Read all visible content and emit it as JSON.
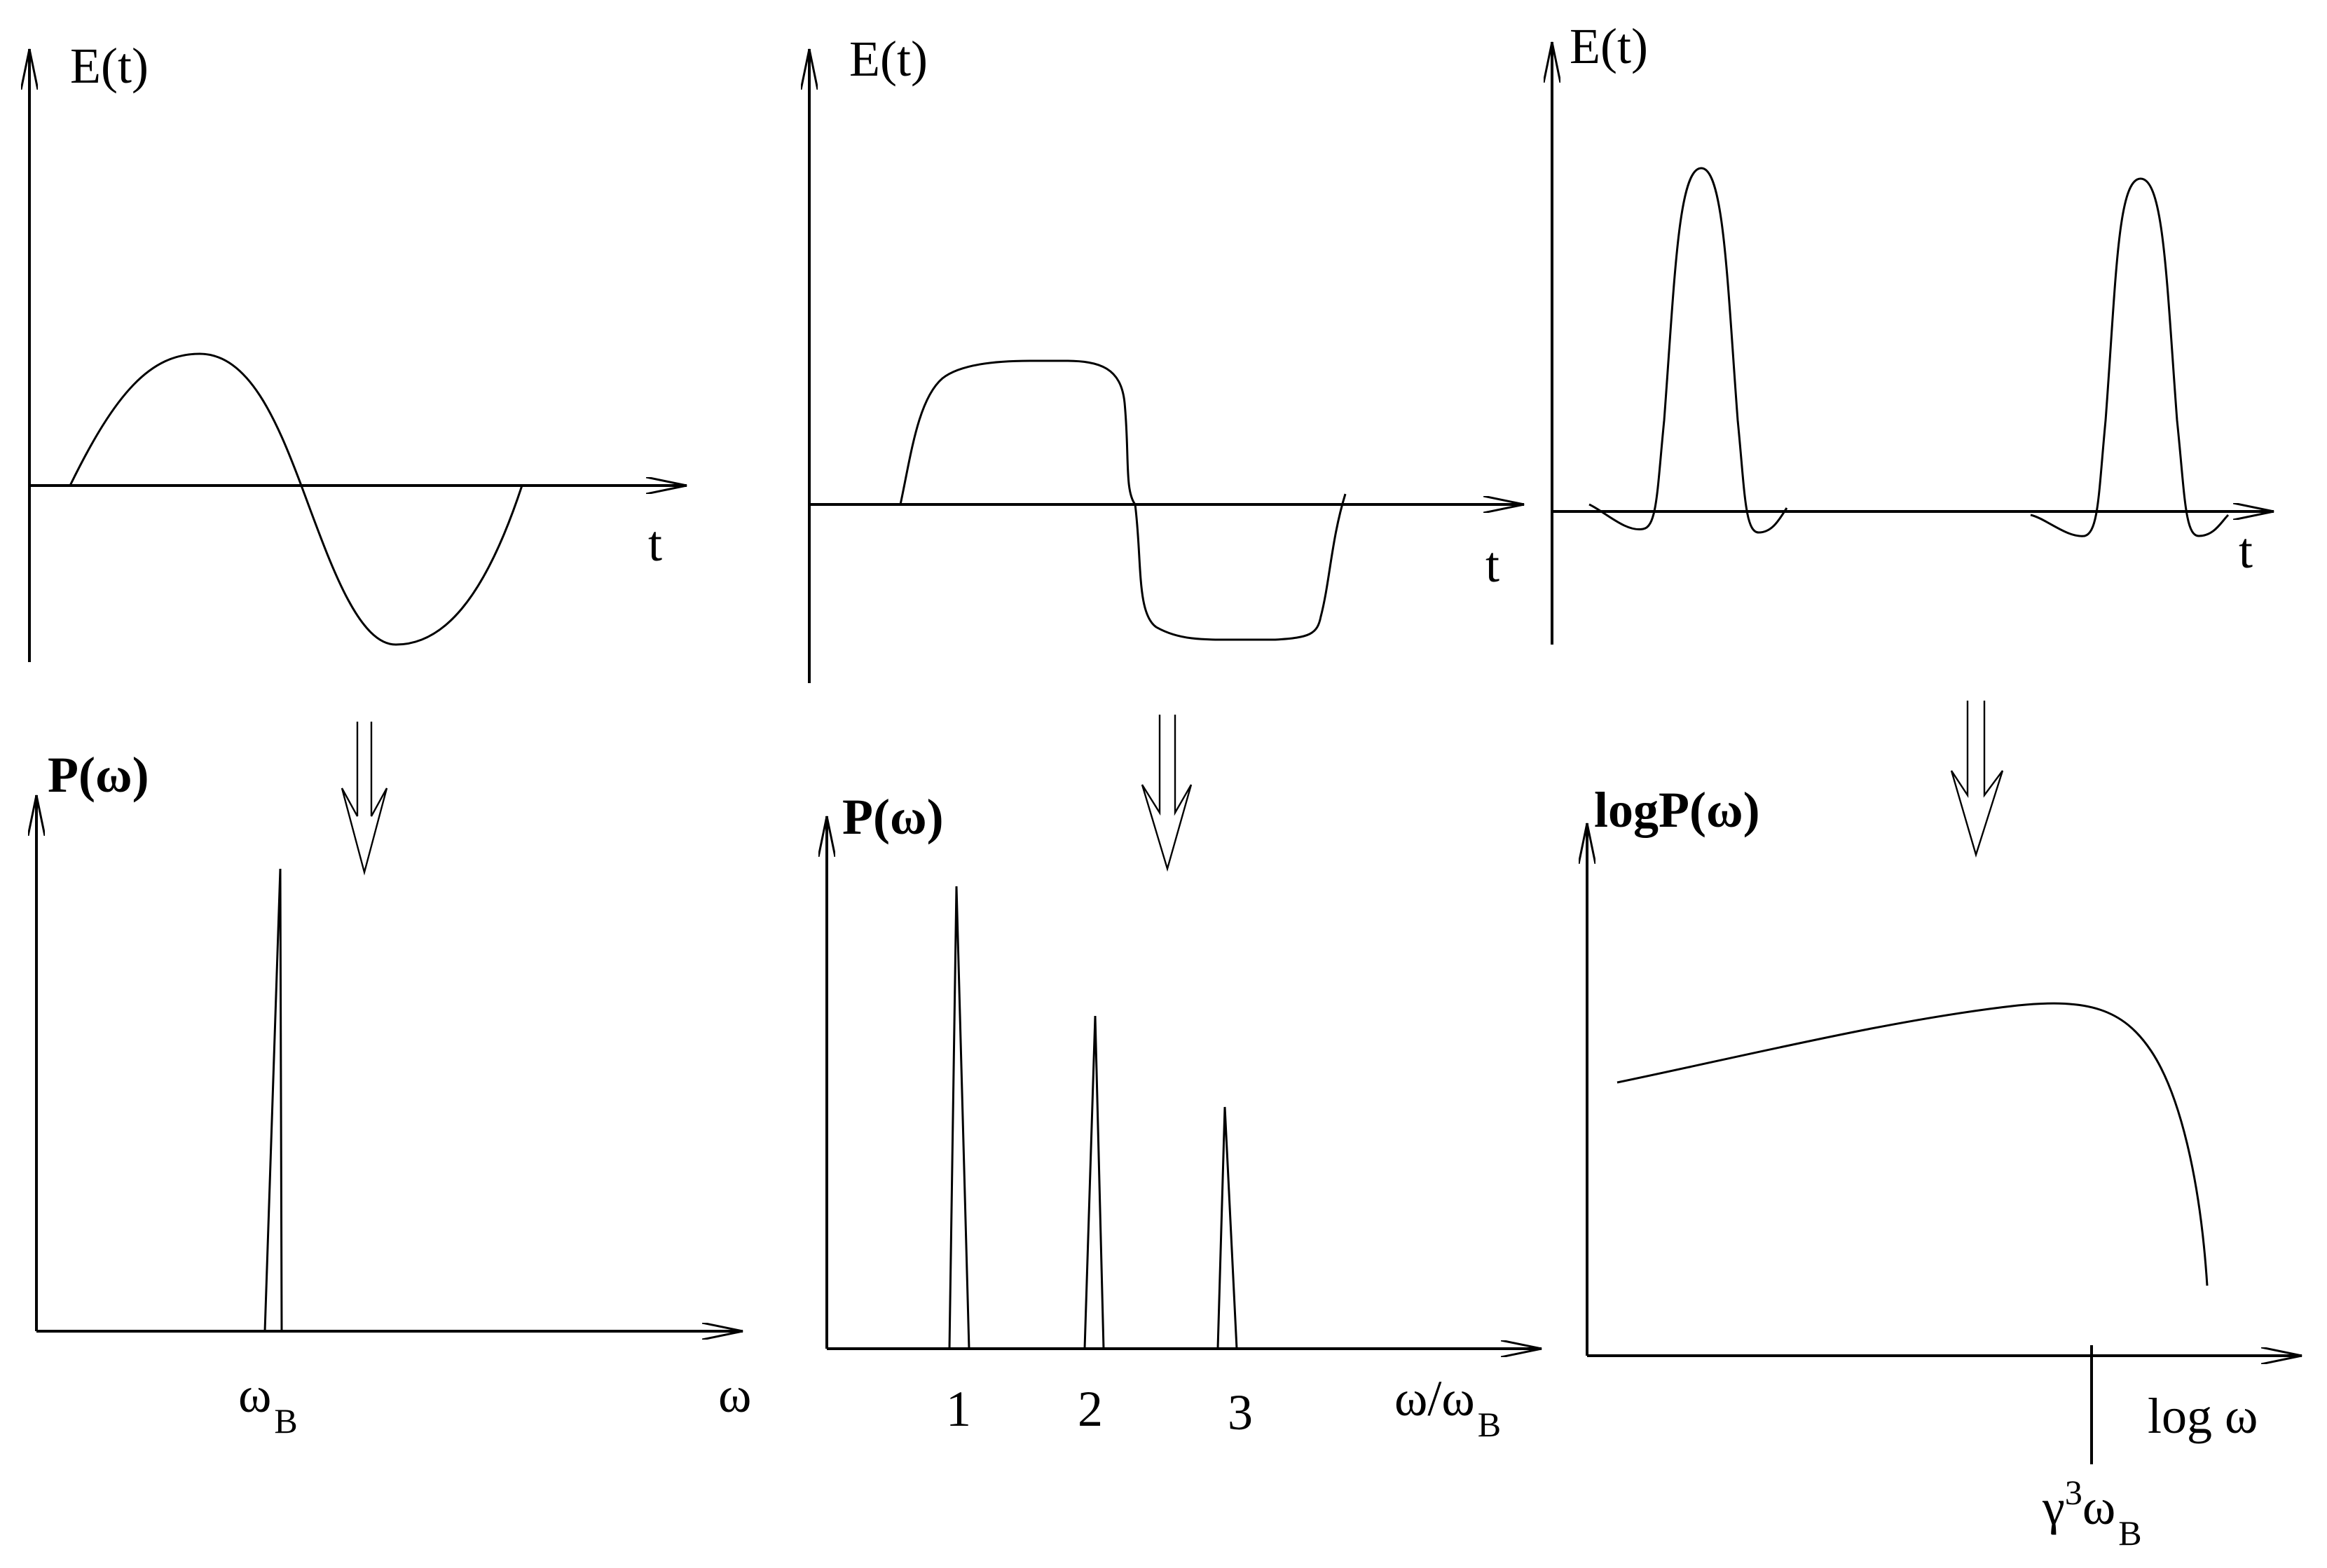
{
  "colors": {
    "background": "#ffffff",
    "ink": "#000000"
  },
  "panels": {
    "sine_wave": {
      "y_label": "E(t)",
      "x_label": "t"
    },
    "square_wave": {
      "y_label": "E(t)",
      "x_label": "t"
    },
    "pulse_train": {
      "y_label": "E(t)",
      "x_label": "t"
    },
    "spectrum_single": {
      "y_label": "P(ω)",
      "x_label": "ω",
      "peak_label_main": "ω",
      "peak_label_sub": "B"
    },
    "spectrum_harmonics": {
      "y_label": "P(ω)",
      "x_label_main": "ω/ω",
      "x_label_sub": "B",
      "tick_labels": [
        "1",
        "2",
        "3"
      ],
      "relative_peak_heights": [
        1.0,
        0.72,
        0.55
      ]
    },
    "spectrum_continuum": {
      "y_label": "logP(ω)",
      "x_label": "log  ω",
      "marker_label_gamma": "γ",
      "marker_label_exp": "3",
      "marker_label_omega": "ω",
      "marker_label_sub": "B"
    }
  },
  "arrows": {
    "count": 3,
    "direction": "down",
    "style": "double-line"
  }
}
